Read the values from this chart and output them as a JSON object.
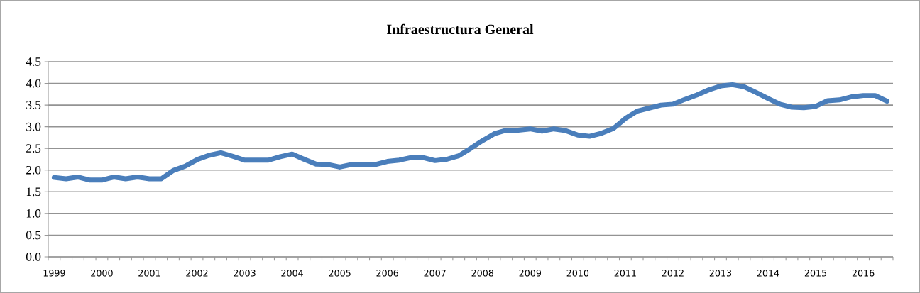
{
  "chart_data": {
    "type": "line",
    "title": "Infraestructura General",
    "categories": [
      "1999",
      null,
      null,
      null,
      "2000",
      null,
      null,
      null,
      "2001",
      null,
      null,
      null,
      "2002",
      null,
      null,
      null,
      "2003",
      null,
      null,
      null,
      "2004",
      null,
      null,
      null,
      "2005",
      null,
      null,
      null,
      "2006",
      null,
      null,
      null,
      "2007",
      null,
      null,
      null,
      "2008",
      null,
      null,
      null,
      "2009",
      null,
      null,
      null,
      "2010",
      null,
      null,
      null,
      "2011",
      null,
      null,
      null,
      "2012",
      null,
      null,
      null,
      "2013",
      null,
      null,
      null,
      "2014",
      null,
      null,
      null,
      "2015",
      null,
      null,
      null,
      "2016",
      null,
      null
    ],
    "series": [
      {
        "color": "#4a7ebb",
        "values": [
          1.83,
          1.8,
          1.84,
          1.77,
          1.77,
          1.84,
          1.8,
          1.84,
          1.8,
          1.8,
          1.99,
          2.09,
          2.24,
          2.34,
          2.4,
          2.32,
          2.23,
          2.23,
          2.23,
          2.31,
          2.37,
          2.25,
          2.14,
          2.13,
          2.07,
          2.13,
          2.13,
          2.13,
          2.2,
          2.23,
          2.29,
          2.29,
          2.22,
          2.25,
          2.33,
          2.5,
          2.68,
          2.84,
          2.92,
          2.92,
          2.95,
          2.9,
          2.95,
          2.91,
          2.81,
          2.78,
          2.85,
          2.96,
          3.19,
          3.36,
          3.43,
          3.5,
          3.52,
          3.63,
          3.73,
          3.85,
          3.94,
          3.97,
          3.92,
          3.79,
          3.65,
          3.52,
          3.45,
          3.44,
          3.47,
          3.6,
          3.62,
          3.69,
          3.72,
          3.72,
          3.59
        ]
      }
    ],
    "ylim": [
      0,
      4.5
    ],
    "yticks": [
      {
        "value": 0,
        "label": "0.0"
      },
      {
        "value": 0.5,
        "label": "0.5"
      },
      {
        "value": 1,
        "label": "1.0"
      },
      {
        "value": 1.5,
        "label": "1.5"
      },
      {
        "value": 2,
        "label": "2.0"
      },
      {
        "value": 2.5,
        "label": "2.5"
      },
      {
        "value": 3,
        "label": "3.0"
      },
      {
        "value": 3.5,
        "label": "3.5"
      },
      {
        "value": 4,
        "label": "4.0"
      },
      {
        "value": 4.5,
        "label": "4.5"
      }
    ],
    "grid": "y",
    "legend": false,
    "marker": "none",
    "line_style": "solid"
  }
}
